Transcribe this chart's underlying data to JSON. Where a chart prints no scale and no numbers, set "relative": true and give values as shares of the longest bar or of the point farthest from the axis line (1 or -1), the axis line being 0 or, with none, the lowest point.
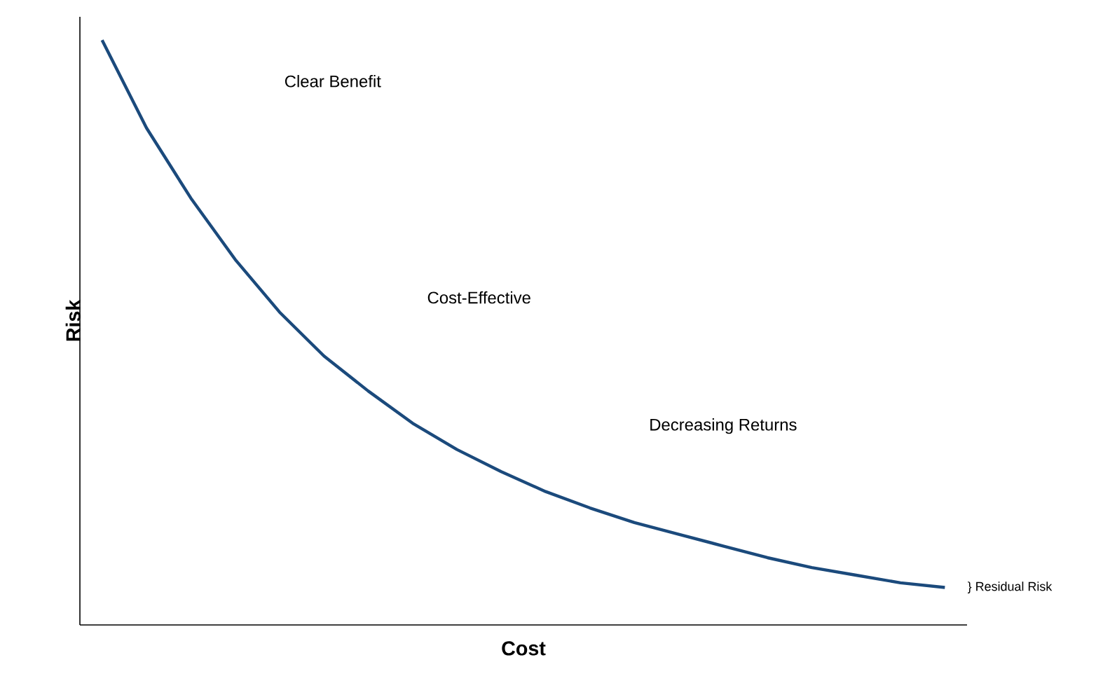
{
  "chart_data": {
    "type": "line",
    "relative": true,
    "xlabel": "Cost",
    "ylabel": "Risk",
    "color": "#1b4a7c",
    "marker": "none",
    "line_style": "solid",
    "tick_labels": false,
    "categories": [
      null,
      null,
      null,
      null,
      null,
      null,
      null,
      null,
      null,
      null,
      null,
      null,
      null,
      null,
      null,
      null,
      null,
      null,
      null,
      null
    ],
    "values": [
      1.0,
      0.85,
      0.73,
      0.625,
      0.535,
      0.46,
      0.4,
      0.345,
      0.3,
      0.262,
      0.228,
      0.2,
      0.175,
      0.155,
      0.135,
      0.115,
      0.098,
      0.085,
      0.072,
      0.064
    ],
    "annotations": [
      "Clear Benefit",
      "Cost-Effective",
      "Decreasing Returns",
      "} Residual Risk"
    ]
  }
}
